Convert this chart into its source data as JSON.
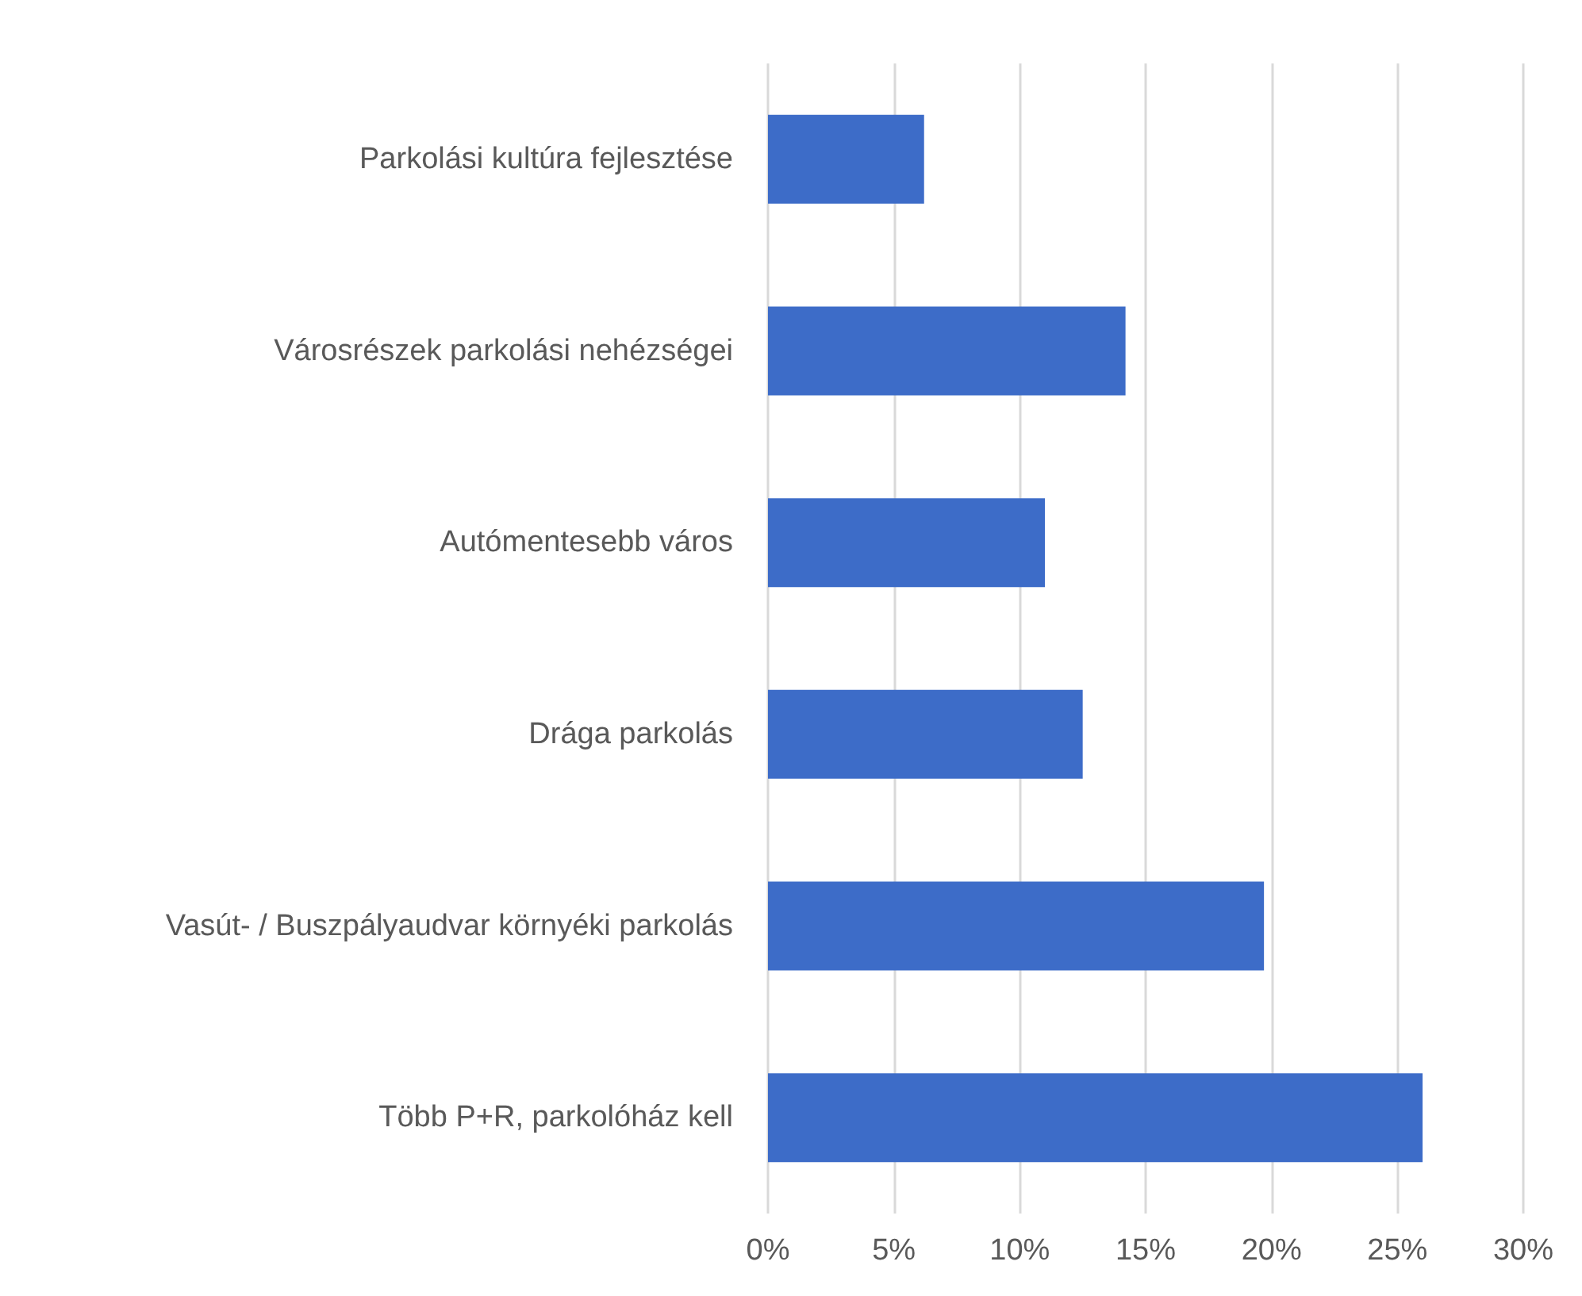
{
  "chart_data": {
    "type": "bar",
    "orientation": "horizontal",
    "categories": [
      "Parkolási kultúra fejlesztése",
      "Városrészek parkolási nehézségei",
      "Autómentesebb város",
      "Drága parkolás",
      "Vasút- / Buszpályaudvar környéki parkolás",
      "Több P+R, parkolóház kell"
    ],
    "values": [
      6.2,
      14.2,
      11.0,
      12.5,
      19.7,
      26.0
    ],
    "color": "#3d6cc8",
    "xlim": [
      0,
      30
    ],
    "xticks": [
      {
        "value": 0,
        "label": "0%"
      },
      {
        "value": 5,
        "label": "5%"
      },
      {
        "value": 10,
        "label": "10%"
      },
      {
        "value": 15,
        "label": "15%"
      },
      {
        "value": 20,
        "label": "20%"
      },
      {
        "value": 25,
        "label": "25%"
      },
      {
        "value": 30,
        "label": "30%"
      }
    ],
    "grid": "x"
  }
}
